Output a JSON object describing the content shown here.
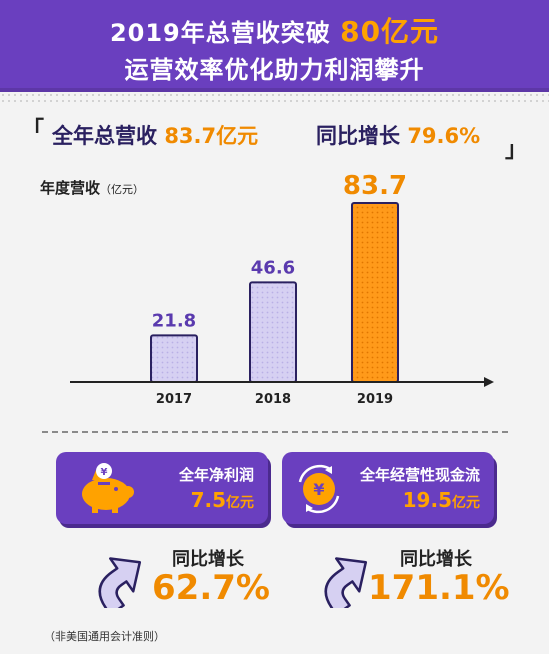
{
  "banner": {
    "line1_prefix": "2019年总营收突破",
    "line1_highlight": "80亿元",
    "line2": "运营效率优化助力利润攀升"
  },
  "headline": {
    "left_label": "全年总营收",
    "left_value": "83.7亿元",
    "right_label": "同比增长",
    "right_value": "79.6%"
  },
  "chart_data": {
    "type": "bar",
    "title": "年度营收",
    "unit": "（亿元）",
    "categories": [
      "2017",
      "2018",
      "2019"
    ],
    "values": [
      21.8,
      46.6,
      83.7
    ],
    "value_labels": [
      "21.8",
      "46.6",
      "83.7"
    ],
    "colors": [
      "#d6d0f2",
      "#d6d0f2",
      "#ff9a1a"
    ],
    "highlight_color": "#f08a00",
    "label_color": "#5a3aae"
  },
  "cards": [
    {
      "icon": "piggy-bank-icon",
      "title": "全年净利润",
      "value": "7.5",
      "unit": "亿元",
      "yoy_label": "同比增长",
      "yoy_value": "62.7%"
    },
    {
      "icon": "cash-flow-yuan-icon",
      "title": "全年经营性现金流",
      "value": "19.5",
      "unit": "亿元",
      "yoy_label": "同比增长",
      "yoy_value": "171.1%"
    }
  ],
  "footnote": "（非美国通用会计准则）"
}
